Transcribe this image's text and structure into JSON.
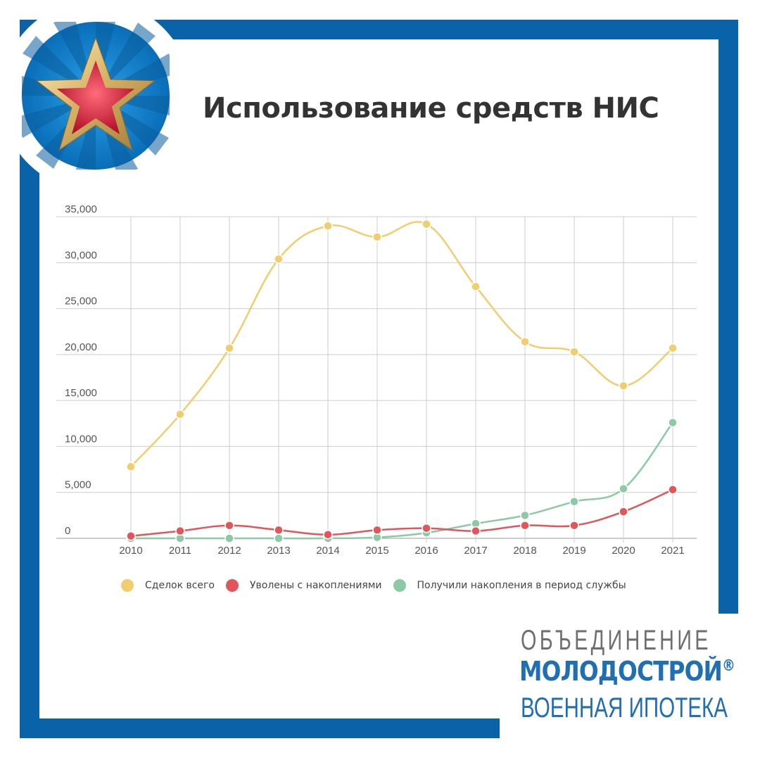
{
  "page_title": "Использование средств НИС",
  "colors": {
    "frame": "#0a63a8",
    "series_total": "#f1cd6e",
    "series_dismissed": "#e2555a",
    "series_received": "#8ccaa5",
    "logo_star": "#d8253a"
  },
  "logo": {
    "icon": "red-star-icon"
  },
  "chart_data": {
    "type": "line",
    "categories": [
      "2010",
      "2011",
      "2012",
      "2013",
      "2014",
      "2015",
      "2016",
      "2017",
      "2018",
      "2019",
      "2020",
      "2021"
    ],
    "y_ticks": [
      "0",
      "5,000",
      "10,000",
      "15,000",
      "20,000",
      "25,000",
      "30,000",
      "35,000"
    ],
    "ylim": [
      0,
      35000
    ],
    "grid": true,
    "legend_position": "bottom",
    "series": [
      {
        "name": "Сделок всего",
        "color": "#f1cd6e",
        "values": [
          7800,
          13500,
          20700,
          30400,
          34000,
          32800,
          34200,
          27400,
          21400,
          20300,
          16600,
          20700
        ]
      },
      {
        "name": "Уволены с накоплениями",
        "color": "#e2555a",
        "values": [
          250,
          800,
          1400,
          900,
          400,
          900,
          1100,
          800,
          1400,
          1400,
          2900,
          5300
        ]
      },
      {
        "name": "Получили накопления в период службы",
        "color": "#8ccaa5",
        "values": [
          0,
          0,
          0,
          0,
          0,
          100,
          600,
          1600,
          2500,
          4000,
          5400,
          12600
        ]
      }
    ]
  },
  "brand": {
    "line1": "ОБЪЕДИНЕНИЕ",
    "line2": "МОЛОДОСТРОЙ",
    "reg": "®",
    "line3": "ВОЕННАЯ ИПОТЕКА"
  }
}
